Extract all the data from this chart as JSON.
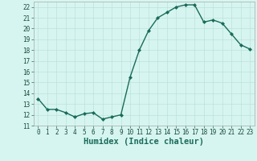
{
  "x": [
    0,
    1,
    2,
    3,
    4,
    5,
    6,
    7,
    8,
    9,
    10,
    11,
    12,
    13,
    14,
    15,
    16,
    17,
    18,
    19,
    20,
    21,
    22,
    23
  ],
  "y": [
    13.5,
    12.5,
    12.5,
    12.2,
    11.8,
    12.1,
    12.2,
    11.6,
    11.8,
    12.0,
    15.5,
    18.0,
    19.8,
    21.0,
    21.5,
    22.0,
    22.2,
    22.2,
    20.6,
    20.8,
    20.5,
    19.5,
    18.5,
    18.1
  ],
  "line_color": "#1a6b5a",
  "marker": "D",
  "marker_size": 2.0,
  "bg_color": "#d6f5f0",
  "grid_major_color": "#c8e8e0",
  "grid_minor_color": "#dff5f0",
  "xlabel": "Humidex (Indice chaleur)",
  "xlim": [
    -0.5,
    23.5
  ],
  "ylim": [
    11,
    22.5
  ],
  "yticks": [
    11,
    12,
    13,
    14,
    15,
    16,
    17,
    18,
    19,
    20,
    21,
    22
  ],
  "xticks": [
    0,
    1,
    2,
    3,
    4,
    5,
    6,
    7,
    8,
    9,
    10,
    11,
    12,
    13,
    14,
    15,
    16,
    17,
    18,
    19,
    20,
    21,
    22,
    23
  ],
  "tick_fontsize": 5.5,
  "xlabel_fontsize": 7.5,
  "line_width": 1.0
}
